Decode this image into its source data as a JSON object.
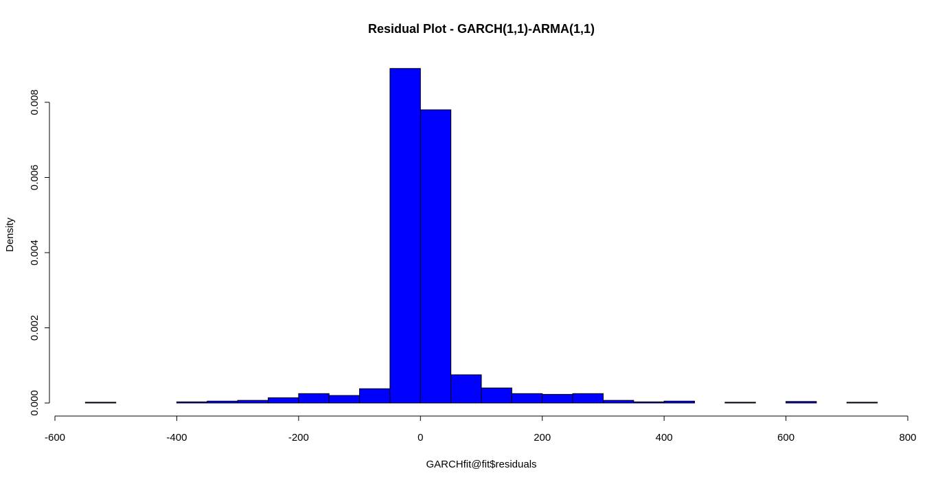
{
  "chart_data": {
    "type": "bar",
    "title": "Residual Plot - GARCH(1,1)-ARMA(1,1)",
    "xlabel": "GARCHfit@fit$residuals",
    "ylabel": "Density",
    "xlim": [
      -600,
      800
    ],
    "ylim": [
      0,
      0.008
    ],
    "x_ticks": [
      -600,
      -400,
      -200,
      0,
      200,
      400,
      600,
      800
    ],
    "x_tick_labels": [
      "-600",
      "-400",
      "-200",
      "0",
      "200",
      "400",
      "600",
      "800"
    ],
    "y_ticks": [
      0,
      0.002,
      0.004,
      0.006,
      0.008
    ],
    "y_tick_labels": [
      "0.000",
      "0.002",
      "0.004",
      "0.006",
      "0.008"
    ],
    "bar_color": "#0000ff",
    "bins": [
      {
        "start": -550,
        "end": -500,
        "density": 2e-05
      },
      {
        "start": -500,
        "end": -450,
        "density": 0.0
      },
      {
        "start": -450,
        "end": -400,
        "density": 0.0
      },
      {
        "start": -400,
        "end": -350,
        "density": 3e-05
      },
      {
        "start": -350,
        "end": -300,
        "density": 5e-05
      },
      {
        "start": -300,
        "end": -250,
        "density": 7e-05
      },
      {
        "start": -250,
        "end": -200,
        "density": 0.00014
      },
      {
        "start": -200,
        "end": -150,
        "density": 0.00025
      },
      {
        "start": -150,
        "end": -100,
        "density": 0.0002
      },
      {
        "start": -100,
        "end": -50,
        "density": 0.00038
      },
      {
        "start": -50,
        "end": 0,
        "density": 0.0089
      },
      {
        "start": 0,
        "end": 50,
        "density": 0.0078
      },
      {
        "start": 50,
        "end": 100,
        "density": 0.00075
      },
      {
        "start": 100,
        "end": 150,
        "density": 0.0004
      },
      {
        "start": 150,
        "end": 200,
        "density": 0.00025
      },
      {
        "start": 200,
        "end": 250,
        "density": 0.00023
      },
      {
        "start": 250,
        "end": 300,
        "density": 0.00025
      },
      {
        "start": 300,
        "end": 350,
        "density": 7e-05
      },
      {
        "start": 350,
        "end": 400,
        "density": 3e-05
      },
      {
        "start": 400,
        "end": 450,
        "density": 5e-05
      },
      {
        "start": 450,
        "end": 500,
        "density": 0.0
      },
      {
        "start": 500,
        "end": 550,
        "density": 2e-05
      },
      {
        "start": 550,
        "end": 600,
        "density": 0.0
      },
      {
        "start": 600,
        "end": 650,
        "density": 4e-05
      },
      {
        "start": 650,
        "end": 700,
        "density": 0.0
      },
      {
        "start": 700,
        "end": 750,
        "density": 2e-05
      }
    ]
  }
}
